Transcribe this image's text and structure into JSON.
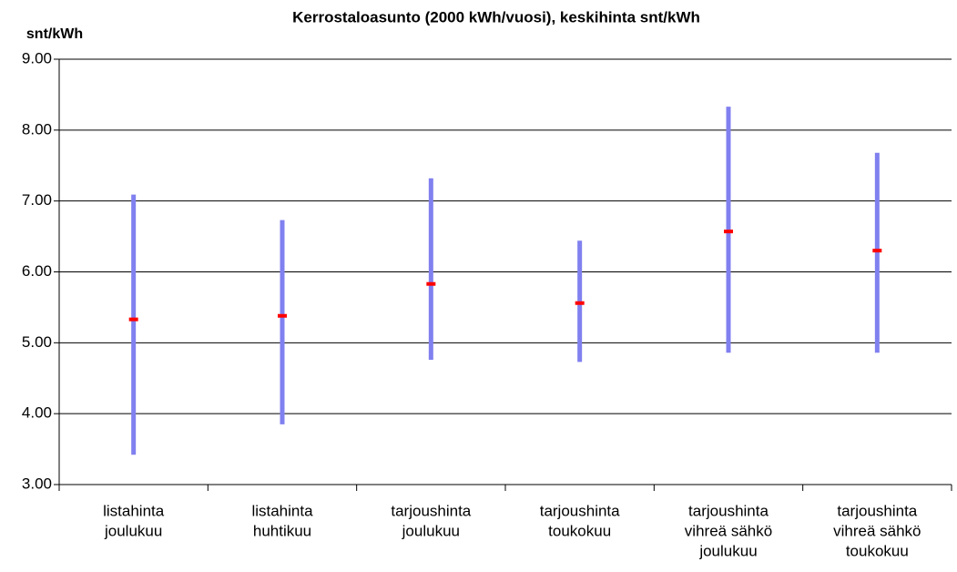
{
  "chart_data": {
    "type": "range",
    "title": "Kerrostaloasunto (2000 kWh/vuosi), keskihinta snt/kWh",
    "y_label": "snt/kWh",
    "categories": [
      [
        "listahinta",
        "joulukuu"
      ],
      [
        "listahinta",
        "huhtikuu"
      ],
      [
        "tarjoushinta",
        "joulukuu"
      ],
      [
        "tarjoushinta",
        "toukokuu"
      ],
      [
        "tarjoushinta",
        "vihreä sähkö",
        "joulukuu"
      ],
      [
        "tarjoushinta",
        "vihreä sähkö",
        "toukokuu"
      ]
    ],
    "high": [
      7.09,
      6.73,
      7.32,
      6.44,
      8.33,
      7.68
    ],
    "low": [
      3.42,
      3.85,
      4.76,
      4.73,
      4.86,
      4.86
    ],
    "mean": [
      5.33,
      5.38,
      5.83,
      5.56,
      6.57,
      6.3
    ],
    "range_color": "#8080f0",
    "mean_color": "#ff0000",
    "ylim": [
      3,
      9
    ],
    "yticks": [
      {
        "value": 3,
        "label": "3.00"
      },
      {
        "value": 4,
        "label": "4.00"
      },
      {
        "value": 5,
        "label": "5.00"
      },
      {
        "value": 6,
        "label": "6.00"
      },
      {
        "value": 7,
        "label": "7.00"
      },
      {
        "value": 8,
        "label": "8.00"
      },
      {
        "value": 9,
        "label": "9.00"
      }
    ],
    "grid": true
  }
}
